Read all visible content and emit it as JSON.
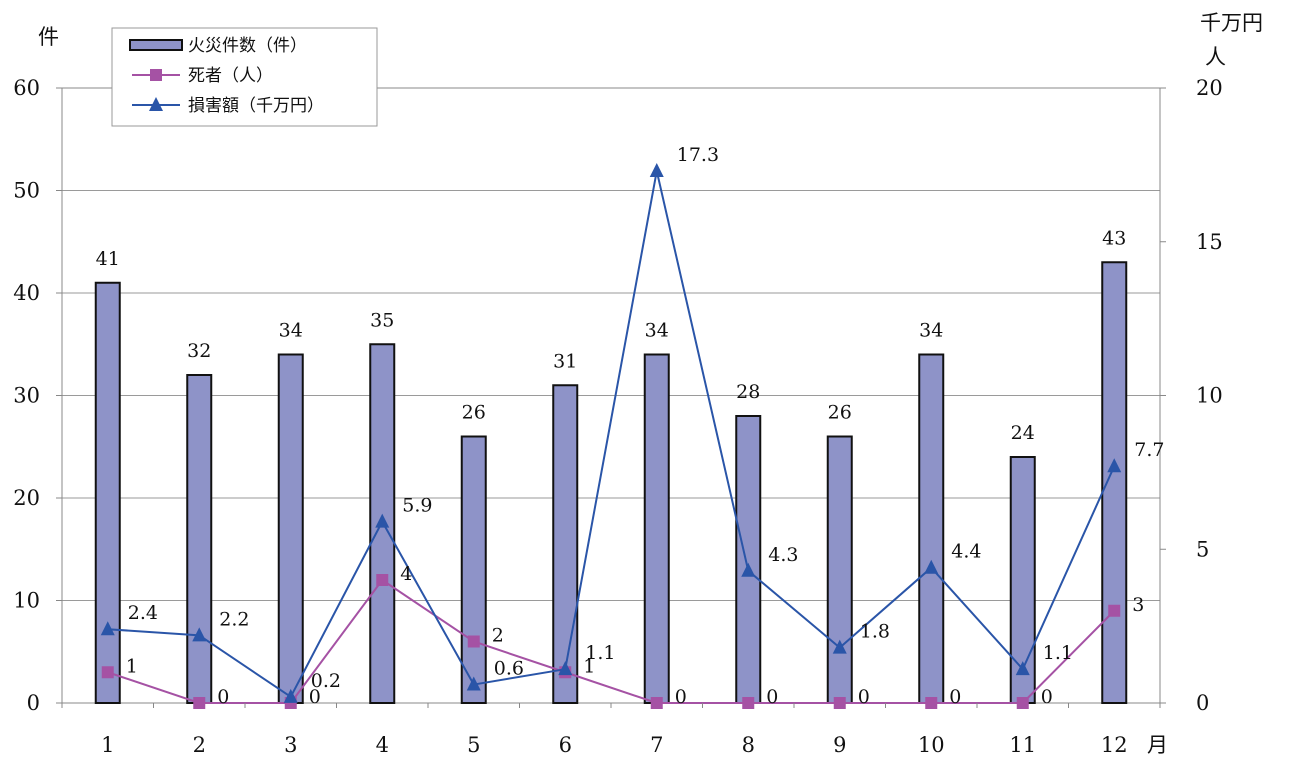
{
  "chart_data": {
    "type": "bar",
    "categories": [
      "1",
      "2",
      "3",
      "4",
      "5",
      "6",
      "7",
      "8",
      "9",
      "10",
      "11",
      "12"
    ],
    "series": [
      {
        "name": "火災件数（件）",
        "type": "bar",
        "axis": "left",
        "values": [
          41,
          32,
          34,
          35,
          26,
          31,
          34,
          28,
          26,
          34,
          24,
          43
        ],
        "labels": [
          "41",
          "32",
          "34",
          "35",
          "26",
          "31",
          "34",
          "28",
          "26",
          "34",
          "24",
          "43"
        ],
        "color": "#8e93c8"
      },
      {
        "name": "死者（人）",
        "type": "line",
        "axis": "right",
        "marker": "square",
        "values": [
          1,
          0,
          0,
          4,
          2,
          1,
          0,
          0,
          0,
          0,
          0,
          3
        ],
        "labels": [
          "1",
          "0",
          "0",
          "4",
          "2",
          "1",
          "0",
          "0",
          "0",
          "0",
          "0",
          "3"
        ],
        "color": "#a552a4"
      },
      {
        "name": "損害額（千万円）",
        "type": "line",
        "axis": "right",
        "marker": "triangle",
        "values": [
          2.4,
          2.2,
          0.2,
          5.9,
          0.6,
          1.1,
          17.3,
          4.3,
          1.8,
          4.4,
          1.1,
          7.7
        ],
        "labels": [
          "2.4",
          "2.2",
          "0.2",
          "5.9",
          "0.6",
          "1.1",
          "17.3",
          "4.3",
          "1.8",
          "4.4",
          "1.1",
          "7.7"
        ],
        "color": "#2a55a8"
      }
    ],
    "y_left": {
      "label": "件",
      "ylim": [
        0,
        60
      ],
      "ticks": [
        "0",
        "10",
        "20",
        "30",
        "40",
        "50",
        "60"
      ]
    },
    "y_right": {
      "label_1": "千万円",
      "label_2": "人",
      "ylim": [
        0,
        20
      ],
      "ticks": [
        "0",
        "5",
        "10",
        "15",
        "20"
      ]
    },
    "x_unit": "月",
    "grid": true,
    "legend_position": "top-left"
  }
}
